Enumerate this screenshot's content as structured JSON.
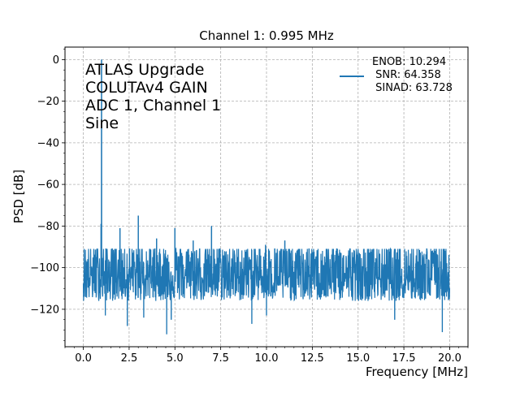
{
  "chart_data": {
    "type": "line",
    "title": "Channel 1: 0.995 MHz",
    "xlabel": "Frequency [MHz]",
    "ylabel": "PSD [dB]",
    "xlim": [
      -1.0,
      21.0
    ],
    "ylim": [
      -138,
      6
    ],
    "x_ticks": [
      0.0,
      2.5,
      5.0,
      7.5,
      10.0,
      12.5,
      15.0,
      17.5,
      20.0
    ],
    "x_tick_labels": [
      "0.0",
      "2.5",
      "5.0",
      "7.5",
      "10.0",
      "12.5",
      "15.0",
      "17.5",
      "20.0"
    ],
    "y_ticks": [
      0,
      -20,
      -40,
      -60,
      -80,
      -100,
      -120
    ],
    "y_tick_labels": [
      "0",
      "−20",
      "−40",
      "−60",
      "−80",
      "−100",
      "−120"
    ],
    "grid": true,
    "legend_position": "top-right",
    "color": "#1f77b4",
    "annotation_lines": [
      "ATLAS Upgrade",
      "COLUTAv4 GAIN",
      "ADC 1, Channel 1",
      "Sine"
    ],
    "legend_lines": [
      "ENOB: 10.294",
      " SNR: 64.358",
      " SINAD: 63.728"
    ],
    "noise_floor": {
      "x_range": [
        0.0,
        20.0
      ],
      "mean_db": -104,
      "min_db": -131,
      "max_db": -91
    },
    "peaks": [
      {
        "x": 0.995,
        "y": 0
      },
      {
        "x": 0.97,
        "y": -79
      },
      {
        "x": 2.0,
        "y": -81
      },
      {
        "x": 3.0,
        "y": -75
      },
      {
        "x": 4.0,
        "y": -86
      },
      {
        "x": 5.0,
        "y": -81
      },
      {
        "x": 6.0,
        "y": -87
      },
      {
        "x": 7.0,
        "y": -80
      },
      {
        "x": 9.95,
        "y": -89
      },
      {
        "x": 11.0,
        "y": -87
      }
    ],
    "dips": [
      {
        "x": 1.2,
        "y": -123
      },
      {
        "x": 2.4,
        "y": -128
      },
      {
        "x": 3.3,
        "y": -124
      },
      {
        "x": 4.55,
        "y": -132
      },
      {
        "x": 4.8,
        "y": -125
      },
      {
        "x": 9.2,
        "y": -127
      },
      {
        "x": 10.0,
        "y": -123
      },
      {
        "x": 17.0,
        "y": -125
      },
      {
        "x": 19.6,
        "y": -131
      }
    ]
  }
}
